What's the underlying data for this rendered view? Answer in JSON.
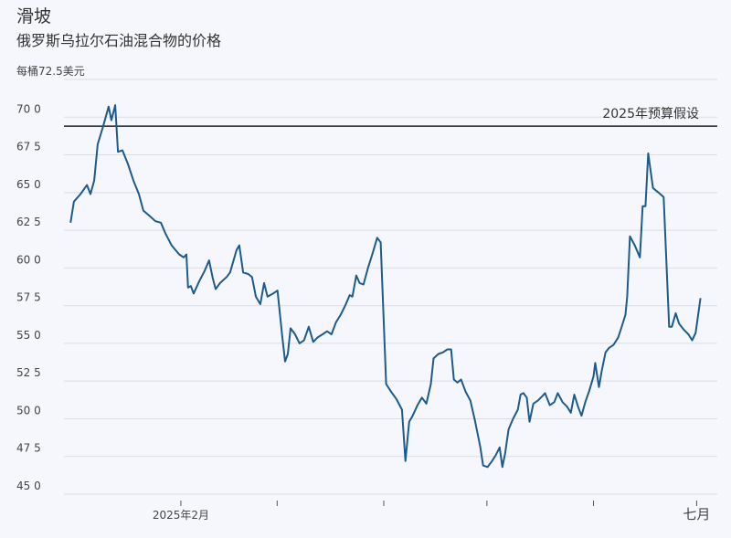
{
  "chart_data": {
    "type": "line",
    "title": "滑坡",
    "subtitle": "俄罗斯乌拉尔石油混合物的价格",
    "color": "#1d5b8c",
    "grid": true,
    "xlim": [
      -3,
      187
    ],
    "ylim": [
      45,
      72.5
    ],
    "yticks": [
      {
        "value": 45,
        "label": "45 0"
      },
      {
        "value": 47.5,
        "label": "47 5"
      },
      {
        "value": 50,
        "label": "50 0"
      },
      {
        "value": 52.5,
        "label": "52 5"
      },
      {
        "value": 55,
        "label": "55 0"
      },
      {
        "value": 57.5,
        "label": "57 5"
      },
      {
        "value": 60,
        "label": "60 0"
      },
      {
        "value": 62.5,
        "label": "62 5"
      },
      {
        "value": 65,
        "label": "65 0"
      },
      {
        "value": 67.5,
        "label": "67 5"
      },
      {
        "value": 70,
        "label": "70 0"
      },
      {
        "value": 72.5,
        "label": "每桶72.5美元"
      }
    ],
    "xticks": [
      {
        "value": 31,
        "label": "2025年2月"
      },
      {
        "value": 181,
        "label": "七月"
      }
    ],
    "xminorticks": [
      59,
      90,
      120,
      151
    ],
    "reference_line": {
      "value": 69.4,
      "label": "2025年预算假设"
    },
    "x": [
      -1.1,
      -0.1,
      1.8,
      3.7,
      4.7,
      5.8,
      6.8,
      8.4,
      10.0,
      10.8,
      11.9,
      12.7,
      14.0,
      15.6,
      17.2,
      18.8,
      20.1,
      21.7,
      23.6,
      25.2,
      26.5,
      28.3,
      30.5,
      31.8,
      32.6,
      33.1,
      33.9,
      34.7,
      36.3,
      37.9,
      39.2,
      40.3,
      41.1,
      42.4,
      44.3,
      45.3,
      47.2,
      48.0,
      49.1,
      50.6,
      51.7,
      52.8,
      54.1,
      55.2,
      56.2,
      57.8,
      59.1,
      60.5,
      61.3,
      62.1,
      62.9,
      64.2,
      65.5,
      66.8,
      68.2,
      69.5,
      70.8,
      72.2,
      73.5,
      74.8,
      76.1,
      77.5,
      78.8,
      80.1,
      80.9,
      82.0,
      83.0,
      84.1,
      85.4,
      86.8,
      88.1,
      89.1,
      90.7,
      92.1,
      93.7,
      95.3,
      96.3,
      97.4,
      98.4,
      99.8,
      101.1,
      102.4,
      103.7,
      104.5,
      105.9,
      107.2,
      108.5,
      109.6,
      110.4,
      111.4,
      112.5,
      113.8,
      115.2,
      116.5,
      118.1,
      118.9,
      120.2,
      121.5,
      122.6,
      123.7,
      124.5,
      125.3,
      126.3,
      127.6,
      129.0,
      129.8,
      130.6,
      131.6,
      132.4,
      133.5,
      134.8,
      136.1,
      136.9,
      138.3,
      139.6,
      140.6,
      142.0,
      143.3,
      144.4,
      145.4,
      146.5,
      147.5,
      148.6,
      149.7,
      151.0,
      151.5,
      152.6,
      153.4,
      154.5,
      155.5,
      156.8,
      158.2,
      159.2,
      160.3,
      160.8,
      161.6,
      163.0,
      164.5,
      165.3,
      166.1,
      166.9,
      168.3,
      169.9,
      171.4,
      173.0,
      173.8,
      174.9,
      175.9,
      177.3,
      178.6,
      179.7,
      180.7,
      182.1
    ],
    "values": [
      63.0,
      64.4,
      64.9,
      65.5,
      64.9,
      65.8,
      68.2,
      69.4,
      70.7,
      69.8,
      70.8,
      67.7,
      67.8,
      66.9,
      65.8,
      64.9,
      63.8,
      63.5,
      63.1,
      63.0,
      62.3,
      61.5,
      60.9,
      60.7,
      60.9,
      58.7,
      58.8,
      58.3,
      59.1,
      59.8,
      60.5,
      59.3,
      58.6,
      59.0,
      59.4,
      59.7,
      61.2,
      61.5,
      59.7,
      59.6,
      59.4,
      58.1,
      57.6,
      59.0,
      58.1,
      58.3,
      58.5,
      55.4,
      53.8,
      54.3,
      56.0,
      55.6,
      55.0,
      55.2,
      56.1,
      55.1,
      55.4,
      55.6,
      55.8,
      55.6,
      56.4,
      56.9,
      57.5,
      58.2,
      58.1,
      59.5,
      59.0,
      58.9,
      60.0,
      61.0,
      62.0,
      61.7,
      52.3,
      51.8,
      51.3,
      50.6,
      47.2,
      49.8,
      50.2,
      50.9,
      51.4,
      51.0,
      52.3,
      54.0,
      54.3,
      54.4,
      54.6,
      54.6,
      52.6,
      52.4,
      52.6,
      51.8,
      51.2,
      49.9,
      48.1,
      46.9,
      46.8,
      47.2,
      47.6,
      48.1,
      46.8,
      47.7,
      49.3,
      50.0,
      50.6,
      51.6,
      51.7,
      51.4,
      49.8,
      51.0,
      51.2,
      51.5,
      51.7,
      50.9,
      51.1,
      51.7,
      51.1,
      50.8,
      50.4,
      51.6,
      50.8,
      50.2,
      51.1,
      51.8,
      52.8,
      53.7,
      52.1,
      53.2,
      54.4,
      54.7,
      54.9,
      55.4,
      56.1,
      56.9,
      58.1,
      62.1,
      61.5,
      60.7,
      64.1,
      64.1,
      67.6,
      65.3,
      65.0,
      64.7,
      56.1,
      56.1,
      57.0,
      56.3,
      55.9,
      55.6,
      55.2,
      55.7,
      58.0
    ]
  }
}
